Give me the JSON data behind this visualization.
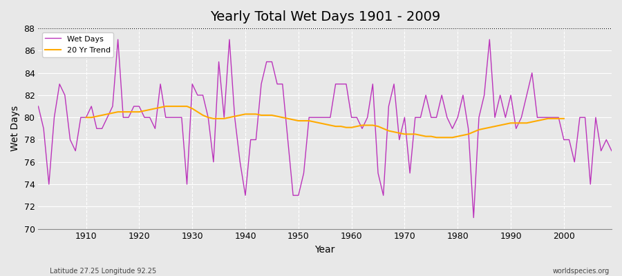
{
  "title": "Yearly Total Wet Days 1901 - 2009",
  "xlabel": "Year",
  "ylabel": "Wet Days",
  "footnote_left": "Latitude 27.25 Longitude 92.25",
  "footnote_right": "worldspecies.org",
  "ylim": [
    70,
    88
  ],
  "yticks": [
    70,
    72,
    74,
    76,
    78,
    80,
    82,
    84,
    86,
    88
  ],
  "xticks": [
    1910,
    1920,
    1930,
    1940,
    1950,
    1960,
    1970,
    1980,
    1990,
    2000
  ],
  "xlim": [
    1901,
    2009
  ],
  "wet_days_color": "#bb33bb",
  "trend_color": "#ffaa00",
  "years": [
    1901,
    1902,
    1903,
    1904,
    1905,
    1906,
    1907,
    1908,
    1909,
    1910,
    1911,
    1912,
    1913,
    1914,
    1915,
    1916,
    1917,
    1918,
    1919,
    1920,
    1921,
    1922,
    1923,
    1924,
    1925,
    1926,
    1927,
    1928,
    1929,
    1930,
    1931,
    1932,
    1933,
    1934,
    1935,
    1936,
    1937,
    1938,
    1939,
    1940,
    1941,
    1942,
    1943,
    1944,
    1945,
    1946,
    1947,
    1948,
    1949,
    1950,
    1951,
    1952,
    1953,
    1954,
    1955,
    1956,
    1957,
    1958,
    1959,
    1960,
    1961,
    1962,
    1963,
    1964,
    1965,
    1966,
    1967,
    1968,
    1969,
    1970,
    1971,
    1972,
    1973,
    1974,
    1975,
    1976,
    1977,
    1978,
    1979,
    1980,
    1981,
    1982,
    1983,
    1984,
    1985,
    1986,
    1987,
    1988,
    1989,
    1990,
    1991,
    1992,
    1993,
    1994,
    1995,
    1996,
    1997,
    1998,
    1999,
    2000,
    2001,
    2002,
    2003,
    2004,
    2005,
    2006,
    2007,
    2008,
    2009
  ],
  "wet_days": [
    81,
    79,
    74,
    80,
    83,
    82,
    78,
    77,
    80,
    80,
    81,
    79,
    79,
    80,
    81,
    87,
    80,
    80,
    81,
    81,
    80,
    80,
    79,
    83,
    80,
    80,
    80,
    80,
    74,
    83,
    82,
    82,
    80,
    76,
    85,
    80,
    87,
    80,
    76,
    73,
    78,
    78,
    83,
    85,
    85,
    83,
    83,
    78,
    73,
    73,
    75,
    80,
    80,
    80,
    80,
    80,
    83,
    83,
    83,
    80,
    80,
    79,
    80,
    83,
    75,
    73,
    81,
    83,
    78,
    80,
    75,
    80,
    80,
    82,
    80,
    80,
    82,
    80,
    79,
    80,
    82,
    79,
    71,
    80,
    82,
    87,
    80,
    82,
    80,
    82,
    79,
    80,
    82,
    84,
    80,
    80,
    80,
    80,
    80,
    78,
    78,
    76,
    80,
    80,
    74,
    80,
    77,
    78,
    77
  ],
  "trend_years": [
    1910,
    1911,
    1912,
    1913,
    1914,
    1915,
    1916,
    1917,
    1918,
    1919,
    1920,
    1921,
    1922,
    1923,
    1924,
    1925,
    1926,
    1927,
    1928,
    1929,
    1930,
    1931,
    1932,
    1933,
    1934,
    1935,
    1936,
    1937,
    1938,
    1939,
    1940,
    1941,
    1942,
    1943,
    1944,
    1945,
    1946,
    1947,
    1948,
    1949,
    1950,
    1951,
    1952,
    1953,
    1954,
    1955,
    1956,
    1957,
    1958,
    1959,
    1960,
    1961,
    1962,
    1963,
    1964,
    1965,
    1966,
    1967,
    1968,
    1969,
    1970,
    1971,
    1972,
    1973,
    1974,
    1975,
    1976,
    1977,
    1978,
    1979,
    1980,
    1981,
    1982,
    1983,
    1984,
    1985,
    1986,
    1987,
    1988,
    1989,
    1990,
    1991,
    1992,
    1993,
    1994,
    1995,
    1996,
    1997,
    1998,
    1999,
    2000
  ],
  "trend_values": [
    80.0,
    80.0,
    80.1,
    80.2,
    80.3,
    80.4,
    80.5,
    80.5,
    80.5,
    80.5,
    80.5,
    80.6,
    80.7,
    80.8,
    80.9,
    81.0,
    81.0,
    81.0,
    81.0,
    81.0,
    80.8,
    80.5,
    80.2,
    80.0,
    79.9,
    79.9,
    79.9,
    80.0,
    80.1,
    80.2,
    80.3,
    80.3,
    80.3,
    80.2,
    80.2,
    80.2,
    80.1,
    80.0,
    79.9,
    79.8,
    79.7,
    79.7,
    79.7,
    79.6,
    79.5,
    79.4,
    79.3,
    79.2,
    79.2,
    79.1,
    79.1,
    79.2,
    79.3,
    79.3,
    79.3,
    79.2,
    79.0,
    78.8,
    78.7,
    78.6,
    78.5,
    78.5,
    78.5,
    78.4,
    78.3,
    78.3,
    78.2,
    78.2,
    78.2,
    78.2,
    78.3,
    78.4,
    78.5,
    78.7,
    78.9,
    79.0,
    79.1,
    79.2,
    79.3,
    79.4,
    79.5,
    79.5,
    79.5,
    79.5,
    79.6,
    79.7,
    79.8,
    79.9,
    79.9,
    79.9,
    79.9
  ]
}
